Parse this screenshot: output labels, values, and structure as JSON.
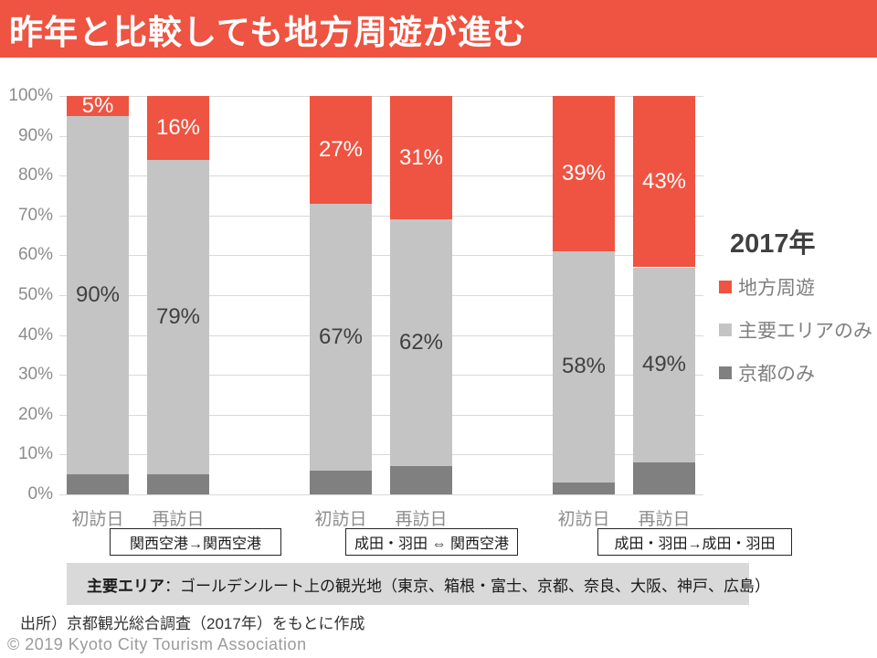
{
  "title": "昨年と比較しても地方周遊が進む",
  "colors": {
    "accent_red": "#EF5341",
    "light_gray": "#C4C4C4",
    "dark_gray": "#808080",
    "grid": "#D9D9D9"
  },
  "chart_data": {
    "type": "bar",
    "stacked": true,
    "unit": "%",
    "ylim": [
      0,
      100
    ],
    "grid": true,
    "yticks": [
      "0%",
      "10%",
      "20%",
      "30%",
      "40%",
      "50%",
      "60%",
      "70%",
      "80%",
      "90%",
      "100%"
    ],
    "categories": [
      "初訪日",
      "再訪日",
      "初訪日",
      "再訪日",
      "初訪日",
      "再訪日"
    ],
    "series": [
      {
        "name": "地方周遊",
        "color": "#EF5341",
        "label_color": "#FFFFFF",
        "show_labels": true,
        "values": [
          5,
          16,
          27,
          31,
          39,
          43
        ],
        "labels": [
          "5%",
          "16%",
          "27%",
          "31%",
          "39%",
          "43%"
        ]
      },
      {
        "name": "主要エリアのみ",
        "color": "#C4C4C4",
        "label_color": "#404040",
        "show_labels": true,
        "values": [
          90,
          79,
          67,
          62,
          58,
          49
        ],
        "labels": [
          "90%",
          "79%",
          "67%",
          "62%",
          "58%",
          "49%"
        ]
      },
      {
        "name": "京都のみ",
        "color": "#808080",
        "label_color": "#404040",
        "show_labels": false,
        "values": [
          5,
          5,
          6,
          7,
          3,
          8
        ],
        "labels": []
      }
    ],
    "groups": [
      {
        "label": "関西空港→関西空港",
        "bars": [
          0,
          1
        ]
      },
      {
        "label": "成田・羽田 ⇔ 関西空港",
        "bars": [
          2,
          3
        ]
      },
      {
        "label": "成田・羽田→成田・羽田",
        "bars": [
          4,
          5
        ]
      }
    ],
    "legend_title": "2017年",
    "legend_position": "right"
  },
  "note": {
    "bold": "主要エリア",
    "rest": "：ゴールデンルート上の観光地（東京、箱根・富士、京都、奈良、大阪、神戸、広島）"
  },
  "source": "出所）京都観光総合調査（2017年）をもとに作成",
  "copyright": "© 2019 Kyoto City Tourism Association"
}
